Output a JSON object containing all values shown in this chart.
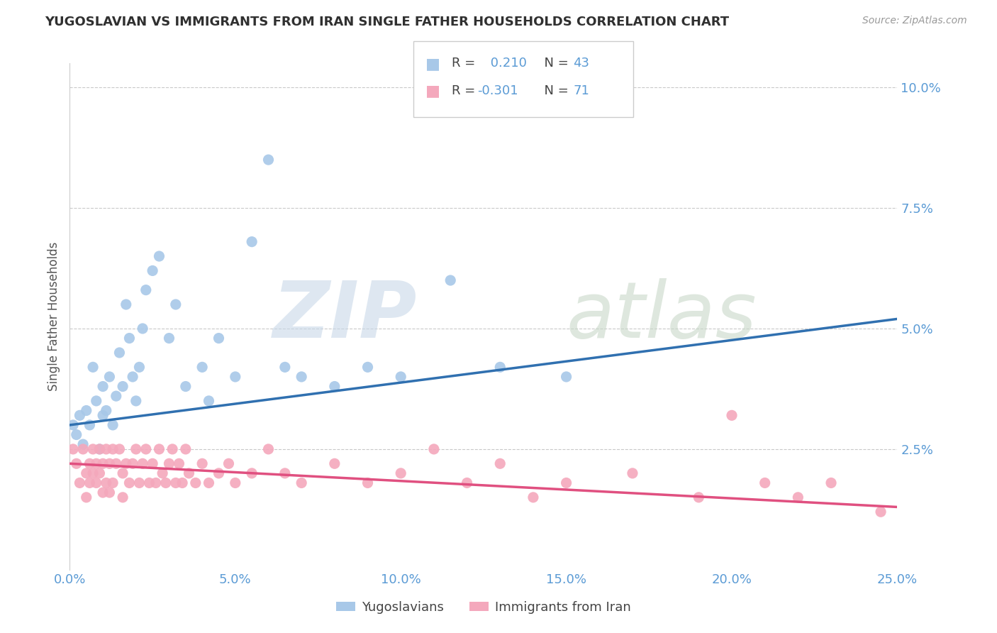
{
  "title": "YUGOSLAVIAN VS IMMIGRANTS FROM IRAN SINGLE FATHER HOUSEHOLDS CORRELATION CHART",
  "source": "Source: ZipAtlas.com",
  "ylabel": "Single Father Households",
  "xlim": [
    0.0,
    0.25
  ],
  "ylim": [
    0.0,
    0.105
  ],
  "xticks": [
    0.0,
    0.05,
    0.1,
    0.15,
    0.2,
    0.25
  ],
  "xticklabels": [
    "0.0%",
    "5.0%",
    "10.0%",
    "15.0%",
    "20.0%",
    "25.0%"
  ],
  "yticks": [
    0.025,
    0.05,
    0.075,
    0.1
  ],
  "yticklabels": [
    "2.5%",
    "5.0%",
    "7.5%",
    "10.0%"
  ],
  "blue_R": 0.21,
  "blue_N": 43,
  "pink_R": -0.301,
  "pink_N": 71,
  "blue_color": "#a8c8e8",
  "pink_color": "#f4a8bc",
  "blue_line_color": "#3070b0",
  "pink_line_color": "#e05080",
  "title_color": "#303030",
  "axis_tick_color": "#5b9bd5",
  "legend_label_blue": "Yugoslavians",
  "legend_label_pink": "Immigrants from Iran",
  "blue_scatter_x": [
    0.001,
    0.002,
    0.003,
    0.004,
    0.005,
    0.006,
    0.007,
    0.008,
    0.009,
    0.01,
    0.01,
    0.011,
    0.012,
    0.013,
    0.014,
    0.015,
    0.016,
    0.017,
    0.018,
    0.019,
    0.02,
    0.021,
    0.022,
    0.023,
    0.025,
    0.027,
    0.03,
    0.032,
    0.035,
    0.04,
    0.042,
    0.045,
    0.05,
    0.055,
    0.06,
    0.065,
    0.07,
    0.08,
    0.09,
    0.1,
    0.115,
    0.13,
    0.15
  ],
  "blue_scatter_y": [
    0.03,
    0.028,
    0.032,
    0.026,
    0.033,
    0.03,
    0.042,
    0.035,
    0.025,
    0.032,
    0.038,
    0.033,
    0.04,
    0.03,
    0.036,
    0.045,
    0.038,
    0.055,
    0.048,
    0.04,
    0.035,
    0.042,
    0.05,
    0.058,
    0.062,
    0.065,
    0.048,
    0.055,
    0.038,
    0.042,
    0.035,
    0.048,
    0.04,
    0.068,
    0.085,
    0.042,
    0.04,
    0.038,
    0.042,
    0.04,
    0.06,
    0.042,
    0.04
  ],
  "pink_scatter_x": [
    0.001,
    0.002,
    0.003,
    0.004,
    0.005,
    0.005,
    0.006,
    0.006,
    0.007,
    0.007,
    0.008,
    0.008,
    0.009,
    0.009,
    0.01,
    0.01,
    0.011,
    0.011,
    0.012,
    0.012,
    0.013,
    0.013,
    0.014,
    0.015,
    0.016,
    0.016,
    0.017,
    0.018,
    0.019,
    0.02,
    0.021,
    0.022,
    0.023,
    0.024,
    0.025,
    0.026,
    0.027,
    0.028,
    0.029,
    0.03,
    0.031,
    0.032,
    0.033,
    0.034,
    0.035,
    0.036,
    0.038,
    0.04,
    0.042,
    0.045,
    0.048,
    0.05,
    0.055,
    0.06,
    0.065,
    0.07,
    0.08,
    0.09,
    0.1,
    0.11,
    0.12,
    0.13,
    0.14,
    0.15,
    0.17,
    0.19,
    0.2,
    0.21,
    0.22,
    0.23,
    0.245
  ],
  "pink_scatter_y": [
    0.025,
    0.022,
    0.018,
    0.025,
    0.02,
    0.015,
    0.022,
    0.018,
    0.025,
    0.02,
    0.022,
    0.018,
    0.025,
    0.02,
    0.022,
    0.016,
    0.025,
    0.018,
    0.022,
    0.016,
    0.025,
    0.018,
    0.022,
    0.025,
    0.02,
    0.015,
    0.022,
    0.018,
    0.022,
    0.025,
    0.018,
    0.022,
    0.025,
    0.018,
    0.022,
    0.018,
    0.025,
    0.02,
    0.018,
    0.022,
    0.025,
    0.018,
    0.022,
    0.018,
    0.025,
    0.02,
    0.018,
    0.022,
    0.018,
    0.02,
    0.022,
    0.018,
    0.02,
    0.025,
    0.02,
    0.018,
    0.022,
    0.018,
    0.02,
    0.025,
    0.018,
    0.022,
    0.015,
    0.018,
    0.02,
    0.015,
    0.032,
    0.018,
    0.015,
    0.018,
    0.012
  ],
  "blue_trendline_x": [
    0.0,
    0.25
  ],
  "blue_trendline_y": [
    0.03,
    0.052
  ],
  "pink_trendline_x": [
    0.0,
    0.25
  ],
  "pink_trendline_y": [
    0.022,
    0.013
  ],
  "background_color": "#ffffff",
  "grid_color": "#bbbbbb",
  "watermark_zip_color": "#c8d8e8",
  "watermark_atlas_color": "#c8d8c8"
}
